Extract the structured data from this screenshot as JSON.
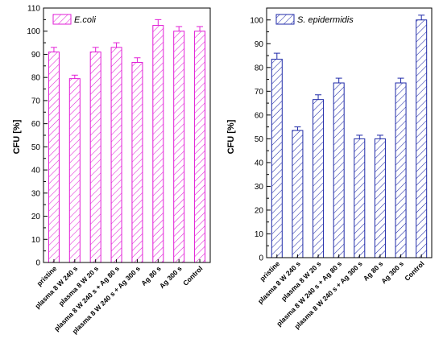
{
  "chart_data": [
    {
      "type": "bar",
      "legend": "E.coli",
      "legend_placement": "top-left",
      "color": "#e21fd7",
      "categories": [
        "pristine",
        "plasma 8 W 240 s",
        "plasma 8 W 20 s",
        "plasma 8 W 240 s + Ag 80 s",
        "plasma 8 W 240 s + Ag 300 s",
        "Ag 80 s",
        "Ag 300 s",
        "Control"
      ],
      "values": [
        91,
        79.5,
        91,
        93,
        86.5,
        102.5,
        100,
        100
      ],
      "errors": [
        2,
        1.5,
        2,
        2,
        2,
        2.5,
        2,
        2
      ],
      "ylabel": "CFU [%]",
      "ylim": [
        0,
        110
      ],
      "yticks": [
        "0",
        "10",
        "20",
        "30",
        "40",
        "50",
        "60",
        "70",
        "80",
        "90",
        "100",
        "110"
      ],
      "grid": false
    },
    {
      "type": "bar",
      "legend": "S. epidermidis",
      "legend_placement": "top-left",
      "color": "#1f2aa8",
      "categories": [
        "pristine",
        "plasma 8 W 240 s",
        "plasma 8 W 20 s",
        "plasma 8 W 240 s + Ag 80 s",
        "plasma 8 W 240 s + Ag 300 s",
        "Ag 80 s",
        "Ag 300 s",
        "Control"
      ],
      "values": [
        83.5,
        53.5,
        66.5,
        73.5,
        50,
        50,
        73.5,
        100
      ],
      "errors": [
        2.5,
        1.5,
        2,
        2,
        1.5,
        1.5,
        2,
        2
      ],
      "ylabel": "CFU [%]",
      "ylim": [
        0,
        105
      ],
      "yticks": [
        "0",
        "10",
        "20",
        "30",
        "40",
        "50",
        "60",
        "70",
        "80",
        "90",
        "100"
      ],
      "grid": false
    }
  ]
}
